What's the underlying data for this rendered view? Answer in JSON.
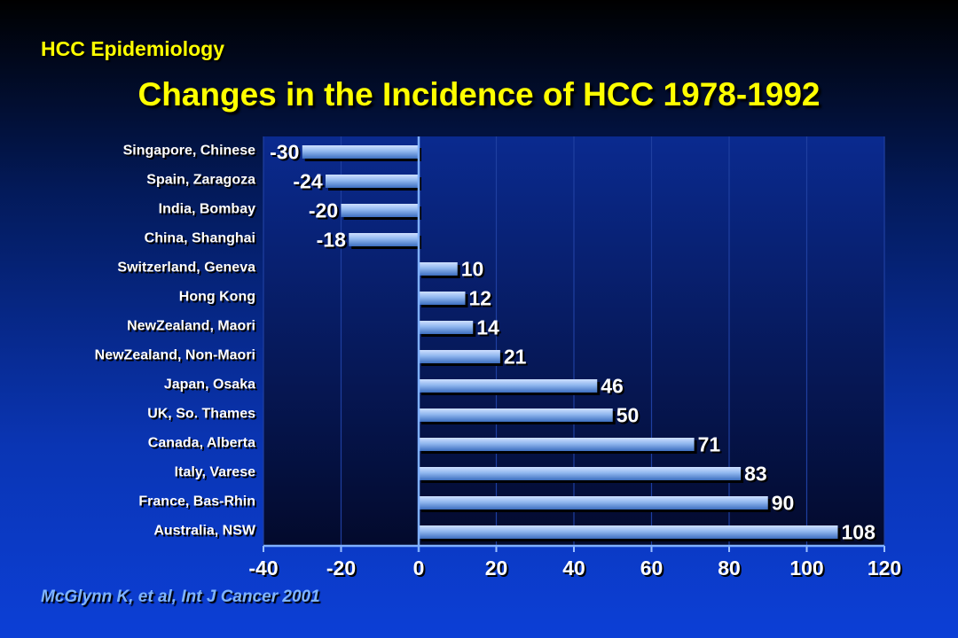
{
  "header": {
    "kicker": "HCC Epidemiology",
    "title": "Changes in the Incidence of HCC 1978-1992"
  },
  "footer": {
    "source": "McGlynn K, et al, Int J Cancer 2001"
  },
  "chart_data": {
    "type": "bar",
    "orientation": "horizontal",
    "title": "Changes in the Incidence of HCC 1978-1992",
    "xlabel": "",
    "ylabel": "",
    "xlim": [
      -40,
      120
    ],
    "xticks": [
      -40,
      -20,
      0,
      20,
      40,
      60,
      80,
      100,
      120
    ],
    "grid": true,
    "categories": [
      "Singapore, Chinese",
      "Spain, Zaragoza",
      "India, Bombay",
      "China, Shanghai",
      "Switzerland, Geneva",
      "Hong Kong",
      "NewZealand, Maori",
      "NewZealand, Non-Maori",
      "Japan, Osaka",
      "UK, So. Thames",
      "Canada, Alberta",
      "Italy, Varese",
      "France, Bas-Rhin",
      "Australia, NSW"
    ],
    "values": [
      -30,
      -24,
      -20,
      -18,
      10,
      12,
      14,
      21,
      46,
      50,
      71,
      83,
      90,
      108
    ],
    "colors": {
      "bar": "#8fb6ee",
      "bar_dark": "#3d6fc0",
      "plot_bg": "#06155a",
      "grid": "#1f3fa0"
    }
  }
}
